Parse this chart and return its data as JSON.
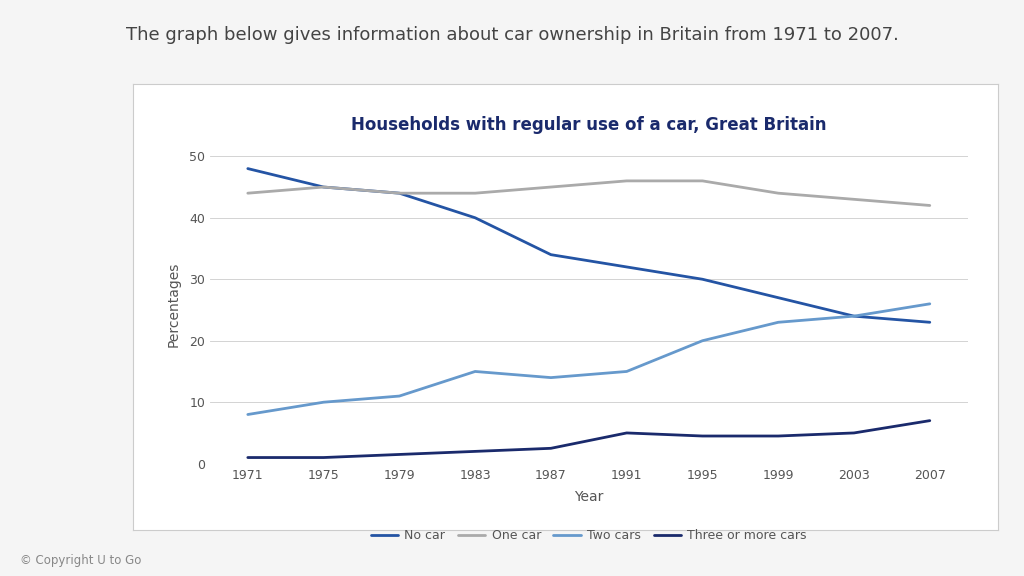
{
  "title": "Households with regular use of a car, Great Britain",
  "subtitle": "The graph below gives information about car ownership in Britain from 1971 to 2007.",
  "xlabel": "Year",
  "ylabel": "Percentages",
  "copyright": "© Copyright U to Go",
  "years": [
    1971,
    1975,
    1979,
    1983,
    1987,
    1991,
    1995,
    1999,
    2003,
    2007
  ],
  "series": {
    "No car": {
      "values": [
        48,
        45,
        44,
        40,
        34,
        32,
        30,
        27,
        24,
        23
      ],
      "color": "#2454a4",
      "linewidth": 2.0
    },
    "One car": {
      "values": [
        44,
        45,
        44,
        44,
        45,
        46,
        46,
        44,
        43,
        42
      ],
      "color": "#aaaaaa",
      "linewidth": 2.0
    },
    "Two cars": {
      "values": [
        8,
        10,
        11,
        15,
        14,
        15,
        20,
        23,
        24,
        26
      ],
      "color": "#6699cc",
      "linewidth": 2.0
    },
    "Three or more cars": {
      "values": [
        1,
        1,
        1.5,
        2,
        2.5,
        5,
        4.5,
        4.5,
        5,
        7
      ],
      "color": "#1a2a6c",
      "linewidth": 2.0
    }
  },
  "ylim": [
    0,
    52
  ],
  "yticks": [
    0,
    10,
    20,
    30,
    40,
    50
  ],
  "xlim": [
    1969,
    2009
  ],
  "background_color": "#f5f5f5",
  "plot_bg_color": "#ffffff",
  "box_bg_color": "#ffffff",
  "grid_color": "#cccccc",
  "title_fontsize": 12,
  "subtitle_fontsize": 13,
  "axis_label_fontsize": 10,
  "tick_fontsize": 9,
  "legend_fontsize": 9,
  "box_border_color": "#cccccc"
}
